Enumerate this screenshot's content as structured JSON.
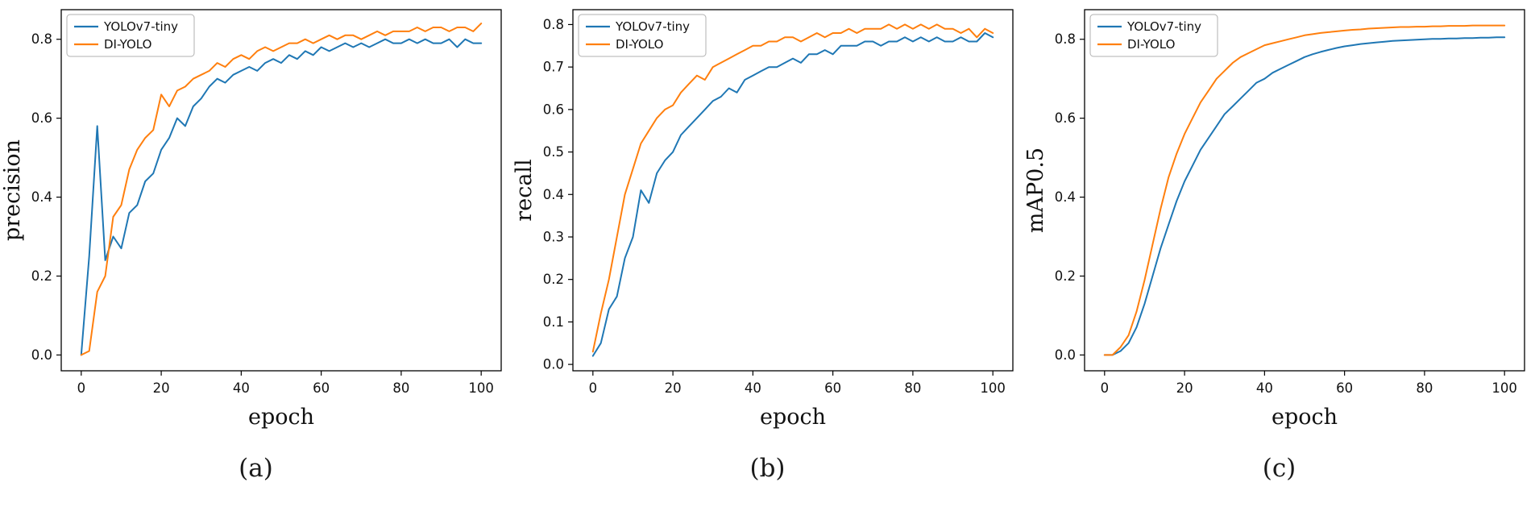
{
  "colors": {
    "yolov7_tiny": "#1f77b4",
    "di_yolo": "#ff7f0e",
    "axis": "#000000",
    "legend_border": "#b0b0b0",
    "background": "#ffffff"
  },
  "legend": {
    "entries": [
      "YOLOv7-tiny",
      "DI-YOLO"
    ],
    "position": "upper-left"
  },
  "chart_data": [
    {
      "type": "line",
      "caption": "(a)",
      "xlabel": "epoch",
      "ylabel": "precision",
      "xlim": [
        -5,
        105
      ],
      "ylim": [
        -0.04,
        0.875
      ],
      "xticks": [
        0,
        20,
        40,
        60,
        80,
        100
      ],
      "yticks": [
        0.0,
        0.2,
        0.4,
        0.6,
        0.8
      ],
      "ytick_decimals": 1,
      "grid": false,
      "legend_position": "upper-left",
      "x": [
        0,
        2,
        4,
        6,
        8,
        10,
        12,
        14,
        16,
        18,
        20,
        22,
        24,
        26,
        28,
        30,
        32,
        34,
        36,
        38,
        40,
        42,
        44,
        46,
        48,
        50,
        52,
        54,
        56,
        58,
        60,
        62,
        64,
        66,
        68,
        70,
        72,
        74,
        76,
        78,
        80,
        82,
        84,
        86,
        88,
        90,
        92,
        94,
        96,
        98,
        100
      ],
      "series": [
        {
          "name": "YOLOv7-tiny",
          "color": "#1f77b4",
          "values": [
            0.0,
            0.25,
            0.58,
            0.24,
            0.3,
            0.27,
            0.36,
            0.38,
            0.44,
            0.46,
            0.52,
            0.55,
            0.6,
            0.58,
            0.63,
            0.65,
            0.68,
            0.7,
            0.69,
            0.71,
            0.72,
            0.73,
            0.72,
            0.74,
            0.75,
            0.74,
            0.76,
            0.75,
            0.77,
            0.76,
            0.78,
            0.77,
            0.78,
            0.79,
            0.78,
            0.79,
            0.78,
            0.79,
            0.8,
            0.79,
            0.79,
            0.8,
            0.79,
            0.8,
            0.79,
            0.79,
            0.8,
            0.78,
            0.8,
            0.79,
            0.79
          ]
        },
        {
          "name": "DI-YOLO",
          "color": "#ff7f0e",
          "values": [
            0.0,
            0.01,
            0.16,
            0.2,
            0.35,
            0.38,
            0.47,
            0.52,
            0.55,
            0.57,
            0.66,
            0.63,
            0.67,
            0.68,
            0.7,
            0.71,
            0.72,
            0.74,
            0.73,
            0.75,
            0.76,
            0.75,
            0.77,
            0.78,
            0.77,
            0.78,
            0.79,
            0.79,
            0.8,
            0.79,
            0.8,
            0.81,
            0.8,
            0.81,
            0.81,
            0.8,
            0.81,
            0.82,
            0.81,
            0.82,
            0.82,
            0.82,
            0.83,
            0.82,
            0.83,
            0.83,
            0.82,
            0.83,
            0.83,
            0.82,
            0.84
          ]
        }
      ]
    },
    {
      "type": "line",
      "caption": "(b)",
      "xlabel": "epoch",
      "ylabel": "recall",
      "xlim": [
        -5,
        105
      ],
      "ylim": [
        -0.015,
        0.835
      ],
      "xticks": [
        0,
        20,
        40,
        60,
        80,
        100
      ],
      "yticks": [
        0.0,
        0.1,
        0.2,
        0.3,
        0.4,
        0.5,
        0.6,
        0.7,
        0.8
      ],
      "ytick_decimals": 1,
      "grid": false,
      "legend_position": "upper-left",
      "x": [
        0,
        2,
        4,
        6,
        8,
        10,
        12,
        14,
        16,
        18,
        20,
        22,
        24,
        26,
        28,
        30,
        32,
        34,
        36,
        38,
        40,
        42,
        44,
        46,
        48,
        50,
        52,
        54,
        56,
        58,
        60,
        62,
        64,
        66,
        68,
        70,
        72,
        74,
        76,
        78,
        80,
        82,
        84,
        86,
        88,
        90,
        92,
        94,
        96,
        98,
        100
      ],
      "series": [
        {
          "name": "YOLOv7-tiny",
          "color": "#1f77b4",
          "values": [
            0.02,
            0.05,
            0.13,
            0.16,
            0.25,
            0.3,
            0.41,
            0.38,
            0.45,
            0.48,
            0.5,
            0.54,
            0.56,
            0.58,
            0.6,
            0.62,
            0.63,
            0.65,
            0.64,
            0.67,
            0.68,
            0.69,
            0.7,
            0.7,
            0.71,
            0.72,
            0.71,
            0.73,
            0.73,
            0.74,
            0.73,
            0.75,
            0.75,
            0.75,
            0.76,
            0.76,
            0.75,
            0.76,
            0.76,
            0.77,
            0.76,
            0.77,
            0.76,
            0.77,
            0.76,
            0.76,
            0.77,
            0.76,
            0.76,
            0.78,
            0.77
          ]
        },
        {
          "name": "DI-YOLO",
          "color": "#ff7f0e",
          "values": [
            0.03,
            0.12,
            0.2,
            0.3,
            0.4,
            0.46,
            0.52,
            0.55,
            0.58,
            0.6,
            0.61,
            0.64,
            0.66,
            0.68,
            0.67,
            0.7,
            0.71,
            0.72,
            0.73,
            0.74,
            0.75,
            0.75,
            0.76,
            0.76,
            0.77,
            0.77,
            0.76,
            0.77,
            0.78,
            0.77,
            0.78,
            0.78,
            0.79,
            0.78,
            0.79,
            0.79,
            0.79,
            0.8,
            0.79,
            0.8,
            0.79,
            0.8,
            0.79,
            0.8,
            0.79,
            0.79,
            0.78,
            0.79,
            0.77,
            0.79,
            0.78
          ]
        }
      ]
    },
    {
      "type": "line",
      "caption": "(c)",
      "xlabel": "epoch",
      "ylabel": "mAP0.5",
      "xlim": [
        -5,
        105
      ],
      "ylim": [
        -0.04,
        0.875
      ],
      "xticks": [
        0,
        20,
        40,
        60,
        80,
        100
      ],
      "yticks": [
        0.0,
        0.2,
        0.4,
        0.6,
        0.8
      ],
      "ytick_decimals": 1,
      "grid": false,
      "legend_position": "upper-left",
      "x": [
        0,
        2,
        4,
        6,
        8,
        10,
        12,
        14,
        16,
        18,
        20,
        22,
        24,
        26,
        28,
        30,
        32,
        34,
        36,
        38,
        40,
        42,
        44,
        46,
        48,
        50,
        52,
        54,
        56,
        58,
        60,
        62,
        64,
        66,
        68,
        70,
        72,
        74,
        76,
        78,
        80,
        82,
        84,
        86,
        88,
        90,
        92,
        94,
        96,
        98,
        100
      ],
      "series": [
        {
          "name": "YOLOv7-tiny",
          "color": "#1f77b4",
          "values": [
            0.0,
            0.0,
            0.01,
            0.03,
            0.07,
            0.13,
            0.2,
            0.27,
            0.33,
            0.39,
            0.44,
            0.48,
            0.52,
            0.55,
            0.58,
            0.61,
            0.63,
            0.65,
            0.67,
            0.69,
            0.7,
            0.715,
            0.725,
            0.735,
            0.745,
            0.755,
            0.762,
            0.768,
            0.773,
            0.778,
            0.782,
            0.785,
            0.788,
            0.79,
            0.792,
            0.794,
            0.796,
            0.797,
            0.798,
            0.799,
            0.8,
            0.801,
            0.801,
            0.802,
            0.802,
            0.803,
            0.803,
            0.804,
            0.804,
            0.805,
            0.805
          ]
        },
        {
          "name": "DI-YOLO",
          "color": "#ff7f0e",
          "values": [
            0.0,
            0.0,
            0.02,
            0.05,
            0.11,
            0.19,
            0.28,
            0.37,
            0.45,
            0.51,
            0.56,
            0.6,
            0.64,
            0.67,
            0.7,
            0.72,
            0.74,
            0.755,
            0.765,
            0.775,
            0.785,
            0.79,
            0.795,
            0.8,
            0.805,
            0.81,
            0.813,
            0.816,
            0.818,
            0.82,
            0.822,
            0.824,
            0.825,
            0.827,
            0.828,
            0.829,
            0.83,
            0.831,
            0.831,
            0.832,
            0.832,
            0.833,
            0.833,
            0.834,
            0.834,
            0.834,
            0.835,
            0.835,
            0.835,
            0.835,
            0.835
          ]
        }
      ]
    }
  ]
}
